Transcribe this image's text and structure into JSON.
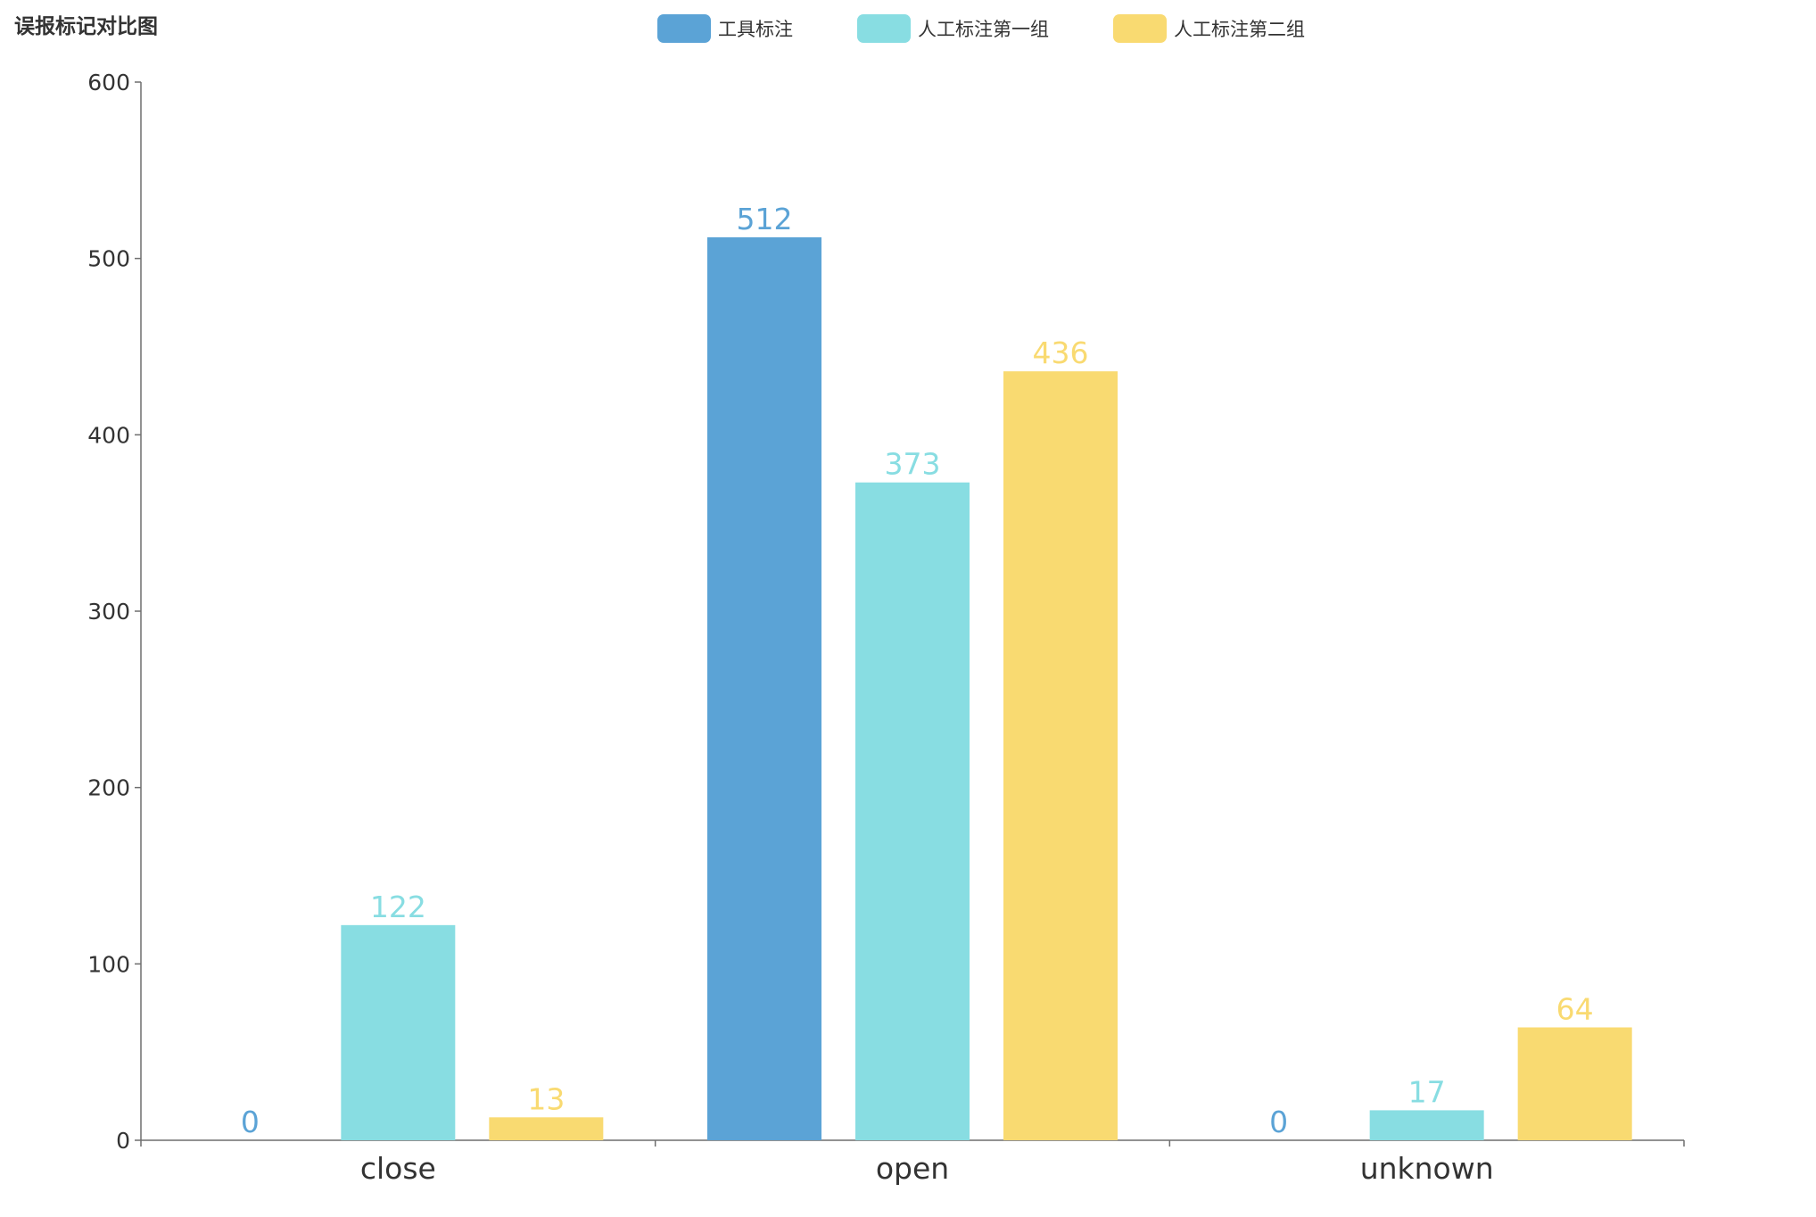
{
  "chart_data": {
    "type": "bar",
    "title": "误报标记对比图",
    "categories": [
      "close",
      "open",
      "unknown"
    ],
    "series": [
      {
        "name": "工具标注",
        "values": [
          0,
          512,
          0
        ],
        "color": "#5ba3d6"
      },
      {
        "name": "人工标注第一组",
        "values": [
          122,
          373,
          17
        ],
        "color": "#88dde2"
      },
      {
        "name": "人工标注第二组",
        "values": [
          13,
          436,
          64
        ],
        "color": "#f9da71"
      }
    ],
    "ylim": [
      0,
      600
    ],
    "yticks": [
      0,
      100,
      200,
      300,
      400,
      500,
      600
    ],
    "xlabel": "",
    "ylabel": "",
    "grid": false,
    "legend_position": "top-center",
    "data_labels": true
  }
}
